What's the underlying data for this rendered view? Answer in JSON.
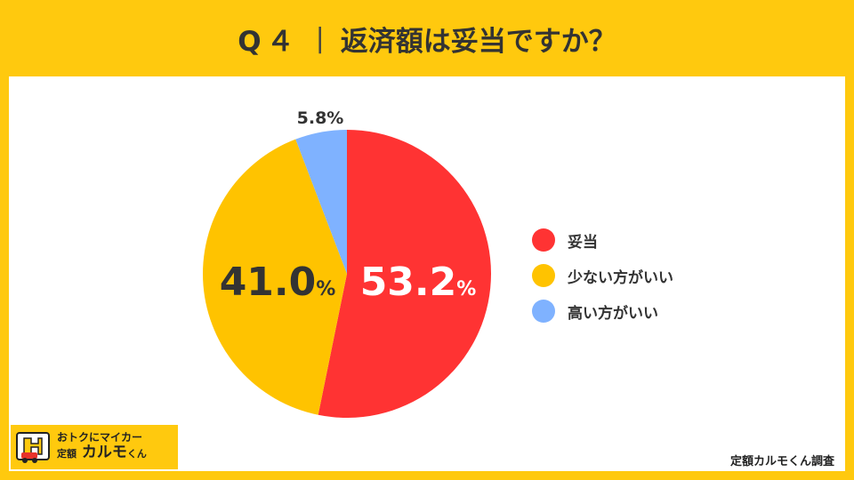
{
  "header": {
    "question": "Q４",
    "title": "返済額は妥当ですか？"
  },
  "chart_data": {
    "type": "pie",
    "slices": [
      {
        "label": "妥当",
        "value": 53.2,
        "color": "#FF3333"
      },
      {
        "label": "少ない方がいい",
        "value": 41.0,
        "color": "#FFC300"
      },
      {
        "label": "高い方がいい",
        "value": 5.8,
        "color": "#7FB2FF"
      }
    ],
    "data_labels": [
      "53.2",
      "41.0",
      "5.8%"
    ],
    "percent_sign": "%",
    "legend_position": "right"
  },
  "logo": {
    "tagline": "おトクにマイカー",
    "brand_prefix": "定額",
    "brand_name": "カルモ",
    "brand_suffix": "くん"
  },
  "source": "定額カルモくん調査"
}
